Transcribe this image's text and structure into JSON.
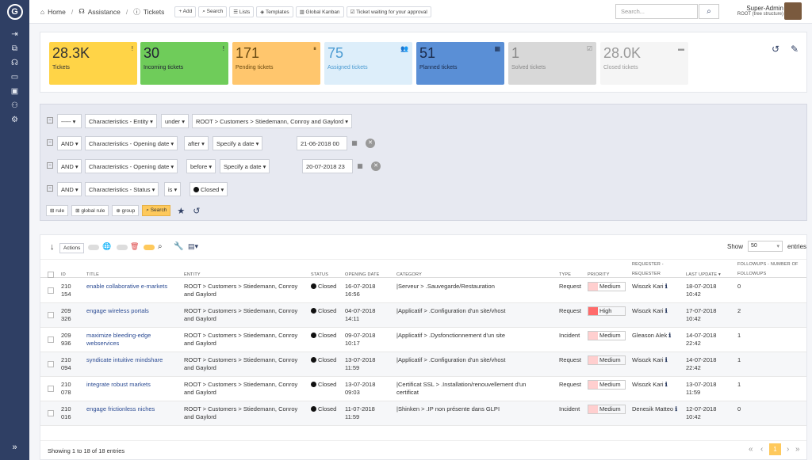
{
  "logo": "G",
  "sidebar": {
    "items": [
      {
        "icon": "sign-in-icon",
        "glyph": "⇥"
      },
      {
        "icon": "sitemap-icon",
        "glyph": "⧉"
      },
      {
        "icon": "headset-icon",
        "glyph": "☊"
      },
      {
        "icon": "folder-icon",
        "glyph": "▭"
      },
      {
        "icon": "briefcase-icon",
        "glyph": "▣"
      },
      {
        "icon": "user-cog-icon",
        "glyph": "⚇"
      },
      {
        "icon": "cogs-icon",
        "glyph": "⚙"
      }
    ],
    "collapse": "»"
  },
  "breadcrumb": {
    "home": "Home",
    "assistance": "Assistance",
    "tickets": "Tickets"
  },
  "toolbar": {
    "add": "Add",
    "search": "Search",
    "lists": "Lists",
    "templates": "Templates",
    "kanban": "Global Kanban",
    "waiting": "Ticket waiting for your approval"
  },
  "search": {
    "placeholder": "Search..."
  },
  "user": {
    "name": "Super-Admin",
    "entity": "ROOT (tree structure)"
  },
  "cards": [
    {
      "value": "28.3K",
      "label": "Tickets",
      "bg": "#ffd447",
      "fg": "#333",
      "icon": "!"
    },
    {
      "value": "30",
      "label": "Incoming tickets",
      "bg": "#6fcc5a",
      "fg": "#223",
      "icon": "!"
    },
    {
      "value": "171",
      "label": "Pending tickets",
      "bg": "#ffc66d",
      "fg": "#6a4a11",
      "icon": "⏸"
    },
    {
      "value": "75",
      "label": "Assigned tickets",
      "bg": "#ddeefa",
      "fg": "#4b9bd2",
      "icon": "👥"
    },
    {
      "value": "51",
      "label": "Planned tickets",
      "bg": "#5a8fd6",
      "fg": "#1a2a4a",
      "icon": "▦"
    },
    {
      "value": "1",
      "label": "Solved tickets",
      "bg": "#d8d8d8",
      "fg": "#888",
      "icon": "☑"
    },
    {
      "value": "28.0K",
      "label": "Closed tickets",
      "bg": "#f5f5f5",
      "fg": "#999",
      "icon": "▬"
    }
  ],
  "criteria": [
    {
      "link": "-----",
      "field": "Characteristics - Entity",
      "op": "under",
      "value": "ROOT > Customers > Stiedemann, Conroy and Gaylord"
    },
    {
      "link": "AND",
      "field": "Characteristics - Opening date",
      "op": "after",
      "value": "Specify a date",
      "date": "21-06-2018 00"
    },
    {
      "link": "AND",
      "field": "Characteristics - Opening date",
      "op": "before",
      "value": "Specify a date",
      "date": "20-07-2018 23"
    },
    {
      "link": "AND",
      "field": "Characteristics - Status",
      "op": "is",
      "value": "Closed"
    }
  ],
  "search_actions": {
    "rule": "rule",
    "global_rule": "global rule",
    "group": "group",
    "search": "Search"
  },
  "list": {
    "actions": "Actions",
    "show_label": "Show",
    "show_value": "50",
    "entries": "entries"
  },
  "columns": {
    "id": "ID",
    "title": "Title",
    "entity": "Entity",
    "status": "Status",
    "opening": "Opening date",
    "category": "Category",
    "type": "Type",
    "priority": "Priority",
    "requester1": "Requester -",
    "requester2": "Requester",
    "update": "Last update",
    "followups1": "Followups - Number of",
    "followups2": "followups"
  },
  "rows": [
    {
      "id1": "210",
      "id2": "154",
      "title": "enable collaborative e-markets",
      "entity1": "ROOT > Customers > Stiedemann, Conroy",
      "entity2": "and Gaylord",
      "status": "Closed",
      "open1": "16-07-2018",
      "open2": "16:56",
      "cat1": "|Serveur > .Sauvegarde/Restauration",
      "cat2": "",
      "type": "Request",
      "prio": "Medium",
      "prio_color": "#ffcfcf",
      "req": "Wisozk Kari",
      "upd1": "18-07-2018",
      "upd2": "10:42",
      "fu": "0"
    },
    {
      "id1": "209",
      "id2": "326",
      "title": "engage wireless portals",
      "entity1": "ROOT > Customers > Stiedemann, Conroy",
      "entity2": "and Gaylord",
      "status": "Closed",
      "open1": "04-07-2018",
      "open2": "14:11",
      "cat1": "|Applicatif > .Configuration d'un site/vhost",
      "cat2": "",
      "type": "Request",
      "prio": "High",
      "prio_color": "#ff6b6b",
      "req": "Wisozk Kari",
      "upd1": "17-07-2018",
      "upd2": "10:42",
      "fu": "2"
    },
    {
      "id1": "209",
      "id2": "936",
      "title": "maximize bleeding-edge",
      "title2": "webservices",
      "entity1": "ROOT > Customers > Stiedemann, Conroy",
      "entity2": "and Gaylord",
      "status": "Closed",
      "open1": "09-07-2018",
      "open2": "10:17",
      "cat1": "|Applicatif > .Dysfonctionnement d'un site",
      "cat2": "",
      "type": "Incident",
      "prio": "Medium",
      "prio_color": "#ffcfcf",
      "req": "Gleason Alek",
      "upd1": "14-07-2018",
      "upd2": "22:42",
      "fu": "1"
    },
    {
      "id1": "210",
      "id2": "094",
      "title": "syndicate intuitive mindshare",
      "entity1": "ROOT > Customers > Stiedemann, Conroy",
      "entity2": "and Gaylord",
      "status": "Closed",
      "open1": "13-07-2018",
      "open2": "11:59",
      "cat1": "|Applicatif > .Configuration d'un site/vhost",
      "cat2": "",
      "type": "Request",
      "prio": "Medium",
      "prio_color": "#ffcfcf",
      "req": "Wisozk Kari",
      "upd1": "14-07-2018",
      "upd2": "22:42",
      "fu": "1"
    },
    {
      "id1": "210",
      "id2": "078",
      "title": "integrate robust markets",
      "entity1": "ROOT > Customers > Stiedemann, Conroy",
      "entity2": "and Gaylord",
      "status": "Closed",
      "open1": "13-07-2018",
      "open2": "09:03",
      "cat1": "|Certificat SSL > .Installation/renouvellement d'un",
      "cat2": "certificat",
      "type": "Request",
      "prio": "Medium",
      "prio_color": "#ffcfcf",
      "req": "Wisozk Kari",
      "upd1": "13-07-2018",
      "upd2": "11:59",
      "fu": "1"
    },
    {
      "id1": "210",
      "id2": "016",
      "title": "engage frictionless niches",
      "entity1": "ROOT > Customers > Stiedemann, Conroy",
      "entity2": "and Gaylord",
      "status": "Closed",
      "open1": "11-07-2018",
      "open2": "11:59",
      "cat1": "|Shinken > .IP non présente dans GLPI",
      "cat2": "",
      "type": "Incident",
      "prio": "Medium",
      "prio_color": "#ffcfcf",
      "req": "Denesik Matteo",
      "upd1": "12-07-2018",
      "upd2": "10:42",
      "fu": "0"
    }
  ],
  "footer": {
    "showing": "Showing 1 to 18 of 18 entries",
    "page": "1"
  }
}
